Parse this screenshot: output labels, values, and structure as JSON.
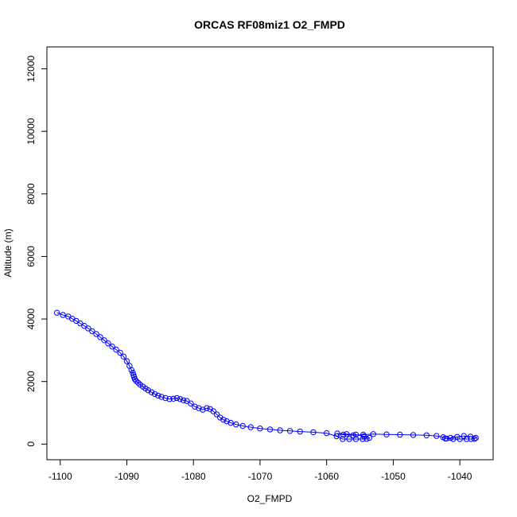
{
  "chart_data": {
    "type": "scatter",
    "title": "ORCAS RF08miz1 O2_FMPD",
    "xlabel": "O2_FMPD",
    "ylabel": "Altitude (m)",
    "xlim": [
      -1102,
      -1035
    ],
    "ylim": [
      -500,
      12700
    ],
    "x_ticks": [
      -1100,
      -1090,
      -1080,
      -1070,
      -1060,
      -1050,
      -1040
    ],
    "y_ticks": [
      0,
      2000,
      4000,
      6000,
      8000,
      10000,
      12000
    ],
    "grid": false,
    "legend": "none",
    "color": "#0000ff",
    "marker": "open-circle",
    "connected": true,
    "series": [
      {
        "x": [
          -1100.5,
          -1099.6,
          -1098.8,
          -1098.2,
          -1097.6,
          -1097.0,
          -1096.4,
          -1095.8,
          -1095.2,
          -1094.6,
          -1094.0,
          -1093.4,
          -1092.8,
          -1092.2,
          -1091.6,
          -1091.0,
          -1090.5,
          -1090.0,
          -1089.6,
          -1089.3,
          -1089.1,
          -1089.0,
          -1088.9,
          -1088.8,
          -1088.6,
          -1088.3,
          -1088.0,
          -1087.6,
          -1087.2,
          -1086.8,
          -1086.3,
          -1085.8,
          -1085.3,
          -1084.8,
          -1084.2,
          -1083.6,
          -1083.0,
          -1082.5,
          -1082.0,
          -1081.5,
          -1081.0,
          -1080.4,
          -1079.8,
          -1079.2,
          -1078.6,
          -1078.0,
          -1077.5,
          -1077.0,
          -1076.5,
          -1076.0,
          -1075.5,
          -1075.0,
          -1074.4,
          -1073.6,
          -1072.6,
          -1071.4,
          -1070.0,
          -1068.5,
          -1067.0,
          -1065.5,
          -1064.0,
          -1062.0,
          -1060.0,
          -1058.5,
          -1057.6,
          -1056.6,
          -1055.6,
          -1054.6,
          -1054.0,
          -1053.6,
          -1054.4,
          -1055.6,
          -1057.0,
          -1058.4,
          -1057.5,
          -1056.0,
          -1054.5,
          -1053.0,
          -1051.0,
          -1049.0,
          -1047.0,
          -1045.0,
          -1043.5,
          -1042.5,
          -1042.0,
          -1041.0,
          -1040.0,
          -1039.0,
          -1038.3,
          -1037.8,
          -1037.6,
          -1038.4,
          -1039.4,
          -1040.4,
          -1041.4,
          -1042.2
        ],
        "y": [
          4200,
          4130,
          4080,
          4010,
          3940,
          3860,
          3780,
          3700,
          3610,
          3520,
          3420,
          3320,
          3220,
          3120,
          3020,
          2920,
          2800,
          2650,
          2500,
          2370,
          2280,
          2200,
          2140,
          2080,
          2020,
          1960,
          1900,
          1840,
          1780,
          1720,
          1660,
          1600,
          1550,
          1510,
          1470,
          1440,
          1450,
          1470,
          1440,
          1400,
          1380,
          1300,
          1200,
          1150,
          1100,
          1150,
          1120,
          1050,
          950,
          850,
          780,
          730,
          680,
          630,
          580,
          540,
          500,
          470,
          440,
          420,
          400,
          380,
          350,
          250,
          160,
          160,
          160,
          160,
          170,
          200,
          250,
          300,
          320,
          340,
          300,
          280,
          300,
          320,
          310,
          300,
          290,
          280,
          260,
          220,
          180,
          160,
          160,
          160,
          160,
          170,
          200,
          240,
          260,
          230,
          200,
          180
        ]
      }
    ]
  }
}
